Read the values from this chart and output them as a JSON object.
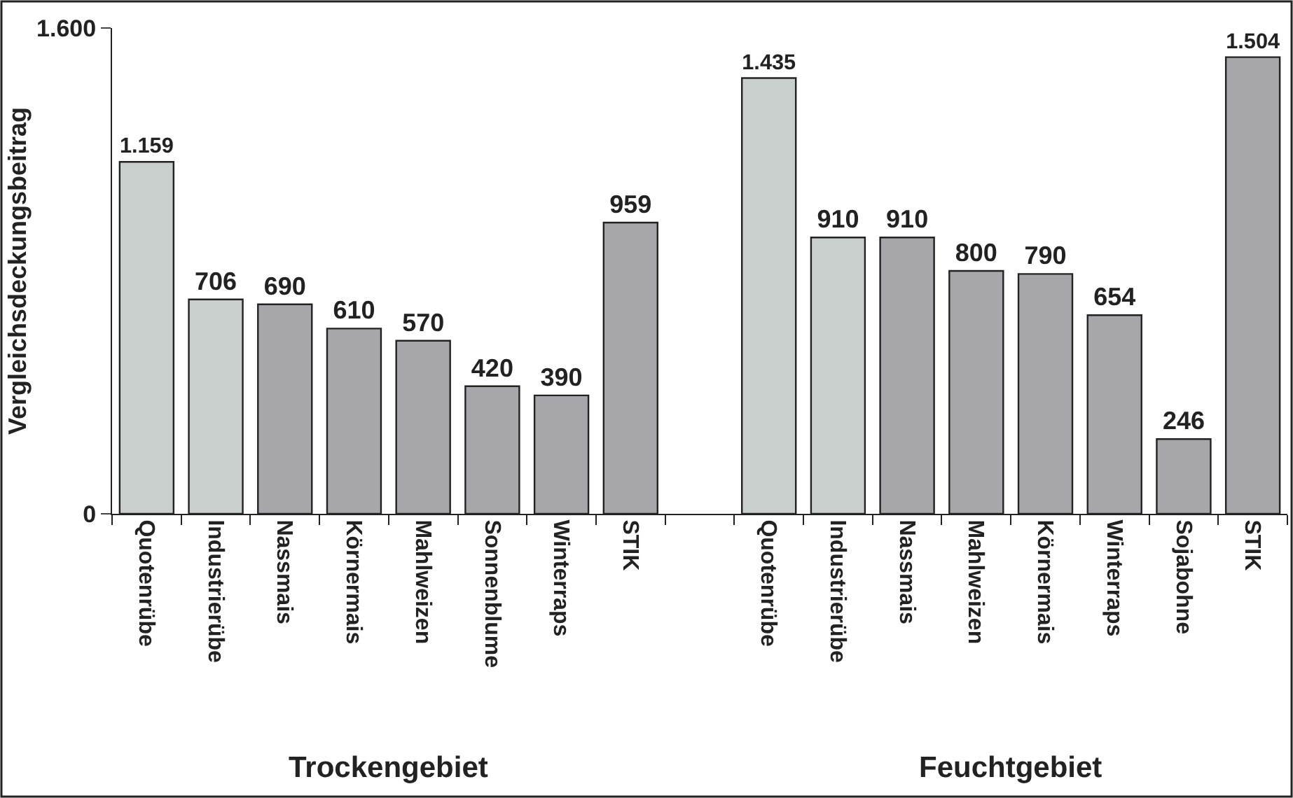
{
  "chart_data": {
    "type": "bar",
    "ylabel": "Vergleichsdeckungsbeitrag",
    "categories": [
      "Quotenrübe",
      "Industrierübe",
      "Nassmais",
      "Körnermais",
      "Mahlweizen",
      "Sonnenblume",
      "Winterraps",
      "STIK",
      null,
      "Quotenrübe",
      "Industrierübe",
      "Nassmais",
      "Mahlweizen",
      "Körnermais",
      "Winterraps",
      "Sojabohne",
      "STIK"
    ],
    "values": [
      1159,
      706,
      690,
      610,
      570,
      420,
      390,
      959,
      null,
      1435,
      910,
      910,
      800,
      790,
      654,
      246,
      1504
    ],
    "value_labels": [
      "1.159",
      "706",
      "690",
      "610",
      "570",
      "420",
      "390",
      "959",
      null,
      "1.435",
      "910",
      "910",
      "800",
      "790",
      "654",
      "246",
      "1.504"
    ],
    "colors": [
      "#c9cfcc",
      "#c9cfcc",
      "#a7a7ab",
      "#a7a7ab",
      "#a7a7ab",
      "#a7a7ab",
      "#a7a7ab",
      "#a7a7ab",
      null,
      "#c9cfcc",
      "#c9cfcc",
      "#a7a7ab",
      "#a7a7ab",
      "#a7a7ab",
      "#a7a7ab",
      "#a7a7ab",
      "#a7a7ab"
    ],
    "ylim": [
      0,
      1600
    ],
    "yticks": [
      0,
      {
        "value": 1600,
        "label": "1.600"
      }
    ],
    "annotations": [
      "Trockengebiet",
      "Feuchtgebiet"
    ],
    "legend": false
  }
}
